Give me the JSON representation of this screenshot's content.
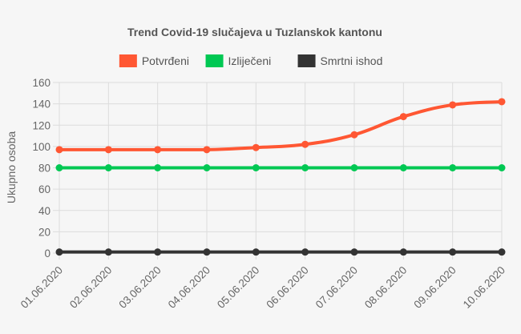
{
  "chart_data": {
    "type": "line",
    "title": "Trend Covid-19 slučajeva u Tuzlanskok kantonu",
    "ylabel": "Ukupno osoba",
    "xlabel": "",
    "categories": [
      "01.06.2020",
      "02.06.2020",
      "03.06.2020",
      "04.06.2020",
      "05.06.2020",
      "06.06.2020",
      "07.06.2020",
      "08.06.2020",
      "09.06.2020",
      "10.06.2020"
    ],
    "ylim": [
      0,
      160
    ],
    "yticks": [
      0,
      20,
      40,
      60,
      80,
      100,
      120,
      140,
      160
    ],
    "grid": true,
    "legend_position": "top",
    "series": [
      {
        "name": "Potvrđeni",
        "color": "#ff5733",
        "values": [
          97,
          97,
          97,
          97,
          99,
          102,
          111,
          128,
          139,
          142
        ]
      },
      {
        "name": "Izliječeni",
        "color": "#00c853",
        "values": [
          80,
          80,
          80,
          80,
          80,
          80,
          80,
          80,
          80,
          80
        ]
      },
      {
        "name": "Smrtni ishod",
        "color": "#333333",
        "values": [
          1,
          1,
          1,
          1,
          1,
          1,
          1,
          1,
          1,
          1
        ]
      }
    ]
  }
}
